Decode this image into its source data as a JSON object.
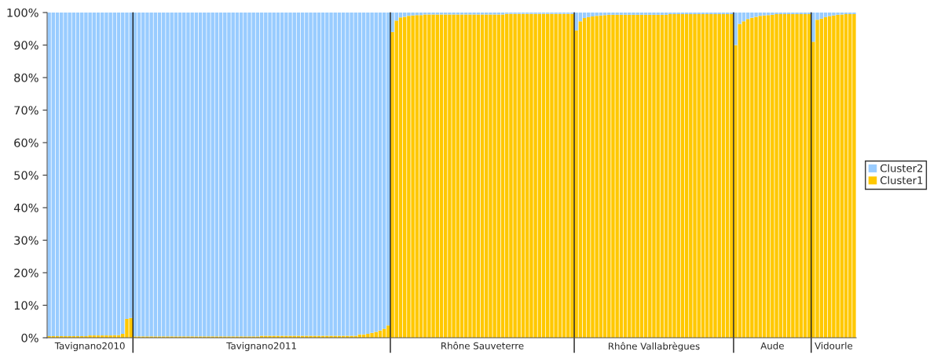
{
  "chart_data": {
    "type": "bar",
    "stacked": true,
    "categories": [
      null,
      null,
      null,
      null,
      null,
      null,
      null,
      null,
      null,
      null,
      "Tavignano2010",
      null,
      null,
      null,
      null,
      null,
      null,
      null,
      null,
      null,
      null,
      null,
      null,
      null,
      null,
      null,
      null,
      null,
      null,
      null,
      null,
      null,
      null,
      null,
      null,
      null,
      null,
      null,
      null,
      null,
      null,
      null,
      null,
      null,
      null,
      null,
      null,
      null,
      null,
      null,
      null,
      null,
      "Tavignano2011",
      null,
      null,
      null,
      null,
      null,
      null,
      null,
      null,
      null,
      null,
      null,
      null,
      null,
      null,
      null,
      null,
      null,
      null,
      null,
      null,
      null,
      null,
      null,
      null,
      null,
      null,
      null,
      null,
      null,
      null,
      null,
      null,
      null,
      null,
      null,
      null,
      null,
      null,
      null,
      null,
      null,
      null,
      null,
      null,
      null,
      null,
      null,
      null,
      null,
      null,
      null,
      null,
      null,
      "Rhône Sauveterre",
      null,
      null,
      null,
      null,
      null,
      null,
      null,
      null,
      null,
      null,
      null,
      null,
      null,
      null,
      null,
      null,
      null,
      null,
      null,
      null,
      null,
      null,
      null,
      null,
      null,
      null,
      null,
      null,
      null,
      null,
      null,
      null,
      null,
      null,
      null,
      null,
      null,
      null,
      null,
      null,
      null,
      "Rhône Vallabrègues",
      null,
      null,
      null,
      null,
      null,
      null,
      null,
      null,
      null,
      null,
      null,
      null,
      null,
      null,
      null,
      null,
      null,
      null,
      null,
      null,
      null,
      null,
      null,
      null,
      null,
      null,
      null,
      null,
      "Aude",
      null,
      null,
      null,
      null,
      null,
      null,
      null,
      null,
      null,
      null,
      null,
      null,
      null,
      null,
      "Vidourle",
      null,
      null,
      null,
      null,
      null
    ],
    "series": [
      {
        "name": "Cluster1",
        "color": "#ffc800",
        "values": [
          0.5,
          0.5,
          0.5,
          0.5,
          0.5,
          0.5,
          0.5,
          0.5,
          0.5,
          0.5,
          0.7,
          0.7,
          0.7,
          0.7,
          0.7,
          0.7,
          0.8,
          0.8,
          1.2,
          5.8,
          6.1,
          0.4,
          0.4,
          0.4,
          0.4,
          0.4,
          0.4,
          0.4,
          0.4,
          0.4,
          0.4,
          0.4,
          0.4,
          0.4,
          0.4,
          0.4,
          0.4,
          0.4,
          0.4,
          0.4,
          0.4,
          0.4,
          0.4,
          0.4,
          0.4,
          0.4,
          0.4,
          0.4,
          0.4,
          0.4,
          0.4,
          0.4,
          0.6,
          0.6,
          0.6,
          0.6,
          0.6,
          0.6,
          0.6,
          0.6,
          0.6,
          0.6,
          0.6,
          0.6,
          0.6,
          0.6,
          0.6,
          0.6,
          0.6,
          0.6,
          0.6,
          0.6,
          0.6,
          0.6,
          0.6,
          0.6,
          1,
          1,
          1.2,
          1.5,
          1.8,
          2.2,
          2.8,
          3.8,
          94,
          97.5,
          98.5,
          98.7,
          99,
          99.1,
          99.2,
          99.2,
          99.4,
          99.4,
          99.4,
          99.4,
          99.4,
          99.4,
          99.4,
          99.4,
          99.4,
          99.4,
          99.4,
          99.4,
          99.4,
          99.4,
          99.4,
          99.4,
          99.4,
          99.4,
          99.4,
          99.4,
          99.6,
          99.6,
          99.6,
          99.6,
          99.6,
          99.6,
          99.6,
          99.6,
          99.6,
          99.6,
          99.6,
          99.6,
          99.6,
          99.6,
          99.6,
          99.6,
          99.6,
          94.5,
          97.3,
          98.3,
          98.6,
          98.8,
          99,
          99.1,
          99.2,
          99.3,
          99.3,
          99.3,
          99.3,
          99.3,
          99.3,
          99.3,
          99.3,
          99.3,
          99.3,
          99.3,
          99.3,
          99.3,
          99.3,
          99.3,
          99.5,
          99.5,
          99.5,
          99.5,
          99.5,
          99.5,
          99.5,
          99.5,
          99.5,
          99.5,
          99.5,
          99.5,
          99.5,
          99.5,
          99.5,
          99.5,
          90,
          96.5,
          97.3,
          98,
          98.4,
          98.7,
          99,
          99.1,
          99.2,
          99.3,
          99.5,
          99.5,
          99.5,
          99.5,
          99.5,
          99.5,
          99.5,
          99.5,
          99.5,
          91,
          97.8,
          98.1,
          98.6,
          98.9,
          99.1,
          99.3,
          99.4,
          99.5,
          99.5,
          99.5
        ]
      },
      {
        "name": "Cluster2",
        "color": "#99ccff",
        "values": [
          99.5,
          99.5,
          99.5,
          99.5,
          99.5,
          99.5,
          99.5,
          99.5,
          99.5,
          99.5,
          99.3,
          99.3,
          99.3,
          99.3,
          99.3,
          99.3,
          99.2,
          99.2,
          98.8,
          94.2,
          93.9,
          99.6,
          99.6,
          99.6,
          99.6,
          99.6,
          99.6,
          99.6,
          99.6,
          99.6,
          99.6,
          99.6,
          99.6,
          99.6,
          99.6,
          99.6,
          99.6,
          99.6,
          99.6,
          99.6,
          99.6,
          99.6,
          99.6,
          99.6,
          99.6,
          99.6,
          99.6,
          99.6,
          99.6,
          99.6,
          99.6,
          99.6,
          99.4,
          99.4,
          99.4,
          99.4,
          99.4,
          99.4,
          99.4,
          99.4,
          99.4,
          99.4,
          99.4,
          99.4,
          99.4,
          99.4,
          99.4,
          99.4,
          99.4,
          99.4,
          99.4,
          99.4,
          99.4,
          99.4,
          99.4,
          99.4,
          99,
          99,
          98.8,
          98.5,
          98.2,
          97.8,
          97.2,
          96.2,
          6,
          2.5,
          1.5,
          1.3,
          1,
          0.9,
          0.8,
          0.8,
          0.6,
          0.6,
          0.6,
          0.6,
          0.6,
          0.6,
          0.6,
          0.6,
          0.6,
          0.6,
          0.6,
          0.6,
          0.6,
          0.6,
          0.6,
          0.6,
          0.6,
          0.6,
          0.6,
          0.6,
          0.4,
          0.4,
          0.4,
          0.4,
          0.4,
          0.4,
          0.4,
          0.4,
          0.4,
          0.4,
          0.4,
          0.4,
          0.4,
          0.4,
          0.4,
          0.4,
          0.4,
          5.5,
          2.7,
          1.7,
          1.4,
          1.2,
          1,
          0.9,
          0.8,
          0.7,
          0.7,
          0.7,
          0.7,
          0.7,
          0.7,
          0.7,
          0.7,
          0.7,
          0.7,
          0.7,
          0.7,
          0.7,
          0.7,
          0.7,
          0.5,
          0.5,
          0.5,
          0.5,
          0.5,
          0.5,
          0.5,
          0.5,
          0.5,
          0.5,
          0.5,
          0.5,
          0.5,
          0.5,
          0.5,
          0.5,
          10,
          3.5,
          2.7,
          2,
          1.6,
          1.3,
          1,
          0.9,
          0.8,
          0.7,
          0.5,
          0.5,
          0.5,
          0.5,
          0.5,
          0.5,
          0.5,
          0.5,
          0.5,
          9,
          2.2,
          1.9,
          1.4,
          1.1,
          0.9,
          0.7,
          0.6,
          0.5,
          0.5,
          0.5
        ]
      }
    ],
    "ylim": [
      0,
      100
    ],
    "yticks": [
      {
        "value": 0,
        "label": "0%"
      },
      {
        "value": 10,
        "label": "10%"
      },
      {
        "value": 20,
        "label": "20%"
      },
      {
        "value": 30,
        "label": "30%"
      },
      {
        "value": 40,
        "label": "40%"
      },
      {
        "value": 50,
        "label": "50%"
      },
      {
        "value": 60,
        "label": "60%"
      },
      {
        "value": 70,
        "label": "70%"
      },
      {
        "value": 80,
        "label": "80%"
      },
      {
        "value": 90,
        "label": "90%"
      },
      {
        "value": 100,
        "label": "100%"
      }
    ],
    "grid": false,
    "legend": "right"
  }
}
